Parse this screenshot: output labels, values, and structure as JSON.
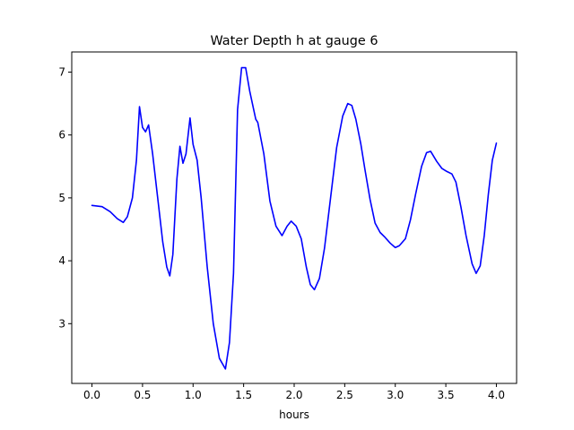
{
  "chart_data": {
    "type": "line",
    "title": "Water Depth h at gauge 6",
    "xlabel": "hours",
    "ylabel": "",
    "xlim": [
      -0.2,
      4.2
    ],
    "ylim": [
      2.05,
      7.32
    ],
    "xticks": [
      0.0,
      0.5,
      1.0,
      1.5,
      2.0,
      2.5,
      3.0,
      3.5,
      4.0
    ],
    "xtick_labels": [
      "0.0",
      "0.5",
      "1.0",
      "1.5",
      "2.0",
      "2.5",
      "3.0",
      "3.5",
      "4.0"
    ],
    "yticks": [
      3,
      4,
      5,
      6,
      7
    ],
    "ytick_labels": [
      "3",
      "4",
      "5",
      "6",
      "7"
    ],
    "grid": false,
    "series": [
      {
        "color": "#0000ff",
        "points": [
          [
            0.0,
            4.88
          ],
          [
            0.1,
            4.86
          ],
          [
            0.18,
            4.78
          ],
          [
            0.25,
            4.67
          ],
          [
            0.31,
            4.61
          ],
          [
            0.35,
            4.7
          ],
          [
            0.4,
            5.0
          ],
          [
            0.44,
            5.6
          ],
          [
            0.47,
            6.45
          ],
          [
            0.5,
            6.12
          ],
          [
            0.53,
            6.05
          ],
          [
            0.56,
            6.16
          ],
          [
            0.6,
            5.7
          ],
          [
            0.65,
            5.0
          ],
          [
            0.7,
            4.3
          ],
          [
            0.74,
            3.9
          ],
          [
            0.77,
            3.76
          ],
          [
            0.8,
            4.1
          ],
          [
            0.84,
            5.3
          ],
          [
            0.87,
            5.82
          ],
          [
            0.9,
            5.55
          ],
          [
            0.93,
            5.7
          ],
          [
            0.97,
            6.27
          ],
          [
            1.0,
            5.85
          ],
          [
            1.04,
            5.6
          ],
          [
            1.08,
            5.0
          ],
          [
            1.14,
            3.9
          ],
          [
            1.2,
            3.0
          ],
          [
            1.26,
            2.45
          ],
          [
            1.32,
            2.28
          ],
          [
            1.36,
            2.7
          ],
          [
            1.4,
            3.8
          ],
          [
            1.44,
            6.4
          ],
          [
            1.48,
            7.07
          ],
          [
            1.52,
            7.07
          ],
          [
            1.56,
            6.7
          ],
          [
            1.62,
            6.25
          ],
          [
            1.64,
            6.2
          ],
          [
            1.7,
            5.7
          ],
          [
            1.76,
            4.95
          ],
          [
            1.82,
            4.55
          ],
          [
            1.88,
            4.4
          ],
          [
            1.93,
            4.55
          ],
          [
            1.97,
            4.63
          ],
          [
            2.02,
            4.55
          ],
          [
            2.07,
            4.35
          ],
          [
            2.12,
            3.9
          ],
          [
            2.16,
            3.62
          ],
          [
            2.2,
            3.54
          ],
          [
            2.25,
            3.72
          ],
          [
            2.3,
            4.2
          ],
          [
            2.36,
            5.0
          ],
          [
            2.42,
            5.8
          ],
          [
            2.48,
            6.3
          ],
          [
            2.53,
            6.5
          ],
          [
            2.57,
            6.47
          ],
          [
            2.61,
            6.25
          ],
          [
            2.66,
            5.85
          ],
          [
            2.7,
            5.45
          ],
          [
            2.75,
            4.98
          ],
          [
            2.8,
            4.6
          ],
          [
            2.85,
            4.45
          ],
          [
            2.9,
            4.37
          ],
          [
            2.95,
            4.28
          ],
          [
            3.0,
            4.21
          ],
          [
            3.04,
            4.24
          ],
          [
            3.1,
            4.35
          ],
          [
            3.15,
            4.65
          ],
          [
            3.2,
            5.05
          ],
          [
            3.26,
            5.5
          ],
          [
            3.31,
            5.72
          ],
          [
            3.35,
            5.74
          ],
          [
            3.41,
            5.58
          ],
          [
            3.46,
            5.47
          ],
          [
            3.51,
            5.42
          ],
          [
            3.56,
            5.38
          ],
          [
            3.6,
            5.25
          ],
          [
            3.65,
            4.85
          ],
          [
            3.7,
            4.4
          ],
          [
            3.76,
            3.95
          ],
          [
            3.8,
            3.8
          ],
          [
            3.84,
            3.92
          ],
          [
            3.88,
            4.4
          ],
          [
            3.92,
            5.05
          ],
          [
            3.96,
            5.6
          ],
          [
            4.0,
            5.87
          ]
        ]
      }
    ]
  }
}
